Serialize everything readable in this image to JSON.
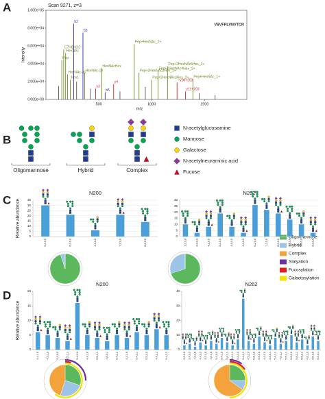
{
  "panel_labels": [
    "A",
    "B",
    "C",
    "D"
  ],
  "glycan_legend": [
    "N-acetylglucosamine",
    "Mannose",
    "Galactose",
    "N-acetylneuraminic acid",
    "Fucose"
  ],
  "glycan_groups": [
    "Oligomannose",
    "Hybrid",
    "Complex"
  ],
  "pie_legend": {
    "names": [
      "Oligomannose",
      "Hybrid",
      "Complex",
      "Sialyation",
      "Fucosylation",
      "Galactosylation"
    ],
    "colors": [
      "#5cb85c",
      "#9dc3e6",
      "#f4a23c",
      "#7030a0",
      "#e31a1c",
      "#f2e205"
    ]
  },
  "chart_data": [
    {
      "type": "spectrum",
      "title": "Scan 9271, z=3",
      "sequence": "VSVFPLVNVTCR",
      "xlabel": "m/z",
      "ylabel": "Intensity",
      "x": [
        120,
        150,
        168,
        186,
        204,
        230,
        262,
        290,
        350,
        366,
        420,
        470,
        528,
        560,
        640,
        700,
        835,
        880,
        940,
        1000,
        1060,
        1150,
        1240,
        1320,
        1390,
        1450,
        1600
      ],
      "values": [
        15000,
        44000,
        56000,
        52000,
        28000,
        22000,
        85000,
        20000,
        75000,
        30000,
        12000,
        12000,
        35000,
        8000,
        17000,
        9000,
        62000,
        30000,
        14000,
        22000,
        32000,
        37000,
        19000,
        9000,
        23000,
        7000,
        5000
      ],
      "annotations": [
        null,
        "Pep",
        "C7H8NO2",
        "HexNAc",
        "HexNAc-36",
        "Hex1",
        "b2",
        null,
        "b3",
        "HexNAc-18",
        null,
        "y3",
        "HexNAcHex",
        "b5",
        "y4",
        null,
        "Pep+HexNAc_2+",
        "Pep+2HexNAc2Hex_2+",
        null,
        "Pep+2HexNAc3Hex_2+",
        "Pep+2HexNAc4Hex_2+",
        "Pep+2HexNAc5Hex_2+",
        "~y10+203",
        "y11+203",
        "Pep+HexNAc_1+",
        null,
        null
      ],
      "colors": [
        "#555555",
        "#6b8e23",
        "#6b8e23",
        "#6b8e23",
        "#6b8e23",
        "#6b8e23",
        "#2a2ac0",
        "#555555",
        "#2a2ac0",
        "#6b8e23",
        "#555555",
        "#d62728",
        "#6b8e23",
        "#2a2ac0",
        "#d62728",
        "#555555",
        "#6b8e23",
        "#6b8e23",
        "#555555",
        "#6b8e23",
        "#6b8e23",
        "#6b8e23",
        "#d62728",
        "#d62728",
        "#6b8e23",
        "#555555",
        "#555555"
      ],
      "xlim": [
        0,
        1900
      ],
      "xticks": [
        500,
        1000,
        1500
      ],
      "ylim": [
        0,
        100000
      ],
      "yticks": [
        {
          "value": 0,
          "label": "0.000e+00"
        },
        {
          "value": 20000,
          "label": "2.000e+04"
        },
        {
          "value": 40000,
          "label": "4.000e+04"
        },
        {
          "value": 60000,
          "label": "6.000e+04"
        },
        {
          "value": 80000,
          "label": "8.000e+04"
        },
        {
          "value": 100000,
          "label": "1.000e+05"
        }
      ]
    },
    {
      "type": "bar",
      "title": "N200",
      "ylabel": "Relative abundance",
      "color": "#4a9fd8",
      "grid": true,
      "categories": [
        "5,2,0,0",
        "6,2,0,0",
        "4,3,0,0",
        "7,2,0,0",
        "8,2,0,0"
      ],
      "values": [
        30,
        21,
        6,
        21,
        14
      ],
      "ylim": [
        0,
        35
      ],
      "yticks": [
        0,
        5,
        10,
        15,
        20,
        25,
        30,
        35
      ]
    },
    {
      "type": "bar",
      "title": "N262",
      "ylabel": null,
      "color": "#4a9fd8",
      "grid": true,
      "categories": [
        "3,2,0,0",
        "3,3,0,0",
        "4,2,0,0",
        "5,2,0,0",
        "4,3,0,0",
        "3,4,0,0",
        "6,2,0,0",
        "7,2,0,0",
        "8,2,0,0",
        "9,2,0,0",
        "5,3,0,0",
        "6,3,0,0"
      ],
      "values": [
        10,
        3,
        8,
        19,
        8,
        3,
        26,
        22,
        19,
        14,
        10,
        3
      ],
      "ylim": [
        0,
        30
      ],
      "yticks": [
        0,
        5,
        10,
        15,
        20,
        25,
        30
      ]
    },
    {
      "type": "pie",
      "values": [
        95,
        5,
        0
      ]
    },
    {
      "type": "pie",
      "values": [
        70,
        30,
        0
      ]
    },
    {
      "type": "bar",
      "title": "N200",
      "ylabel": "Relative abundance",
      "color": "#4a9fd8",
      "grid": false,
      "categories": [
        "3,4,1,0",
        "4,5,1,0",
        "5,4,0,0",
        "3,5,1,1",
        "5,4,2,0",
        "4,4,1,0",
        "5,5,1,1",
        "4,5,0,1",
        "5,4,1,1",
        "4,3,1,0",
        "5,4,2,1",
        "5,5,2,0",
        "4,4,2,1",
        "5,4,2,2"
      ],
      "values": [
        6,
        5,
        4,
        3,
        16,
        5,
        4,
        3,
        5,
        4,
        6,
        5,
        7,
        5
      ],
      "ylim": [
        0,
        20
      ],
      "yticks": [
        0,
        5,
        10,
        15,
        20
      ]
    },
    {
      "type": "bar",
      "title": "N262",
      "ylabel": null,
      "color": "#4a9fd8",
      "grid": false,
      "categories": [
        "3,3,0,0",
        "3,4,0,0",
        "4,3,1,0",
        "4,4,0,0",
        "3,5,1,0",
        "4,5,1,0",
        "5,4,0,0",
        "5,4,1,0",
        "4,4,1,1",
        "3,4,1,1",
        "5,4,2,0",
        "5,4,2,1",
        "4,5,2,0",
        "5,5,1,0",
        "5,5,2,0",
        "4,4,2,0",
        "3,5,0,1",
        "5,4,1,1",
        "4,5,1,1",
        "5,5,1,1",
        "6,5,2,0",
        "5,6,2,1",
        "6,5,2,1",
        "4,6,1,0",
        "6,5,3,0",
        "6,5,3,1"
      ],
      "values": [
        3,
        4,
        2,
        5,
        3,
        6,
        4,
        8,
        5,
        3,
        7,
        35,
        6,
        4,
        9,
        5,
        3,
        8,
        4,
        6,
        10,
        5,
        7,
        3,
        9,
        6
      ],
      "ylim": [
        0,
        40
      ],
      "yticks": [
        0,
        10,
        20,
        30,
        40
      ]
    },
    {
      "type": "pie",
      "values": [
        30,
        25,
        45
      ],
      "ring_values": [
        25,
        5,
        60
      ]
    },
    {
      "type": "pie",
      "values": [
        25,
        10,
        65
      ],
      "ring_values": [
        10,
        15,
        50
      ]
    }
  ]
}
